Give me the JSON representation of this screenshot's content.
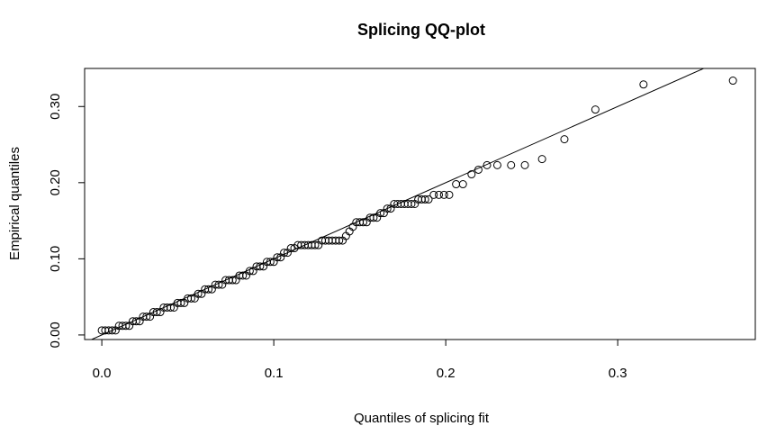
{
  "chart_data": {
    "type": "scatter",
    "title": "Splicing QQ-plot",
    "xlabel": "Quantiles of splicing fit",
    "ylabel": "Empirical quantiles",
    "xlim": [
      -0.01,
      0.38
    ],
    "ylim": [
      -0.006,
      0.35
    ],
    "x_ticks": [
      0.0,
      0.1,
      0.2,
      0.3
    ],
    "x_tick_labels": [
      "0.0",
      "0.1",
      "0.2",
      "0.3"
    ],
    "y_ticks": [
      0.0,
      0.1,
      0.2,
      0.3
    ],
    "y_tick_labels": [
      "0.00",
      "0.10",
      "0.20",
      "0.30"
    ],
    "grid": false,
    "reference_line": {
      "slope": 1.0,
      "intercept": 0.0,
      "color": "#000000"
    },
    "marker": {
      "shape": "open-circle",
      "color": "#000000"
    },
    "points": [
      [
        0.0,
        0.006
      ],
      [
        0.002,
        0.006
      ],
      [
        0.004,
        0.006
      ],
      [
        0.006,
        0.006
      ],
      [
        0.008,
        0.006
      ],
      [
        0.01,
        0.012
      ],
      [
        0.012,
        0.012
      ],
      [
        0.014,
        0.012
      ],
      [
        0.016,
        0.012
      ],
      [
        0.018,
        0.018
      ],
      [
        0.02,
        0.018
      ],
      [
        0.022,
        0.018
      ],
      [
        0.024,
        0.024
      ],
      [
        0.026,
        0.024
      ],
      [
        0.028,
        0.024
      ],
      [
        0.03,
        0.03
      ],
      [
        0.032,
        0.03
      ],
      [
        0.034,
        0.03
      ],
      [
        0.036,
        0.036
      ],
      [
        0.038,
        0.036
      ],
      [
        0.04,
        0.036
      ],
      [
        0.042,
        0.036
      ],
      [
        0.044,
        0.042
      ],
      [
        0.046,
        0.042
      ],
      [
        0.048,
        0.042
      ],
      [
        0.05,
        0.048
      ],
      [
        0.052,
        0.048
      ],
      [
        0.054,
        0.048
      ],
      [
        0.056,
        0.054
      ],
      [
        0.058,
        0.054
      ],
      [
        0.06,
        0.06
      ],
      [
        0.062,
        0.06
      ],
      [
        0.064,
        0.06
      ],
      [
        0.066,
        0.066
      ],
      [
        0.068,
        0.066
      ],
      [
        0.07,
        0.066
      ],
      [
        0.072,
        0.072
      ],
      [
        0.074,
        0.072
      ],
      [
        0.076,
        0.072
      ],
      [
        0.078,
        0.072
      ],
      [
        0.08,
        0.078
      ],
      [
        0.082,
        0.078
      ],
      [
        0.084,
        0.078
      ],
      [
        0.086,
        0.084
      ],
      [
        0.088,
        0.084
      ],
      [
        0.09,
        0.09
      ],
      [
        0.092,
        0.09
      ],
      [
        0.094,
        0.09
      ],
      [
        0.096,
        0.096
      ],
      [
        0.098,
        0.096
      ],
      [
        0.1,
        0.096
      ],
      [
        0.102,
        0.102
      ],
      [
        0.104,
        0.102
      ],
      [
        0.106,
        0.108
      ],
      [
        0.108,
        0.108
      ],
      [
        0.11,
        0.114
      ],
      [
        0.112,
        0.114
      ],
      [
        0.114,
        0.118
      ],
      [
        0.116,
        0.118
      ],
      [
        0.118,
        0.118
      ],
      [
        0.12,
        0.118
      ],
      [
        0.122,
        0.118
      ],
      [
        0.124,
        0.118
      ],
      [
        0.126,
        0.118
      ],
      [
        0.128,
        0.124
      ],
      [
        0.13,
        0.124
      ],
      [
        0.132,
        0.124
      ],
      [
        0.134,
        0.124
      ],
      [
        0.136,
        0.124
      ],
      [
        0.138,
        0.124
      ],
      [
        0.14,
        0.124
      ],
      [
        0.142,
        0.13
      ],
      [
        0.144,
        0.136
      ],
      [
        0.146,
        0.142
      ],
      [
        0.148,
        0.148
      ],
      [
        0.15,
        0.148
      ],
      [
        0.152,
        0.148
      ],
      [
        0.154,
        0.148
      ],
      [
        0.156,
        0.154
      ],
      [
        0.158,
        0.154
      ],
      [
        0.16,
        0.154
      ],
      [
        0.162,
        0.16
      ],
      [
        0.164,
        0.16
      ],
      [
        0.166,
        0.166
      ],
      [
        0.168,
        0.166
      ],
      [
        0.17,
        0.172
      ],
      [
        0.172,
        0.172
      ],
      [
        0.174,
        0.172
      ],
      [
        0.176,
        0.172
      ],
      [
        0.178,
        0.172
      ],
      [
        0.18,
        0.172
      ],
      [
        0.182,
        0.172
      ],
      [
        0.184,
        0.178
      ],
      [
        0.186,
        0.178
      ],
      [
        0.188,
        0.178
      ],
      [
        0.19,
        0.178
      ],
      [
        0.193,
        0.184
      ],
      [
        0.196,
        0.184
      ],
      [
        0.199,
        0.184
      ],
      [
        0.202,
        0.184
      ],
      [
        0.206,
        0.198
      ],
      [
        0.21,
        0.198
      ],
      [
        0.215,
        0.211
      ],
      [
        0.219,
        0.217
      ],
      [
        0.224,
        0.223
      ],
      [
        0.23,
        0.223
      ],
      [
        0.238,
        0.223
      ],
      [
        0.246,
        0.223
      ],
      [
        0.256,
        0.231
      ],
      [
        0.269,
        0.257
      ],
      [
        0.287,
        0.296
      ],
      [
        0.315,
        0.329
      ],
      [
        0.367,
        0.334
      ]
    ]
  }
}
